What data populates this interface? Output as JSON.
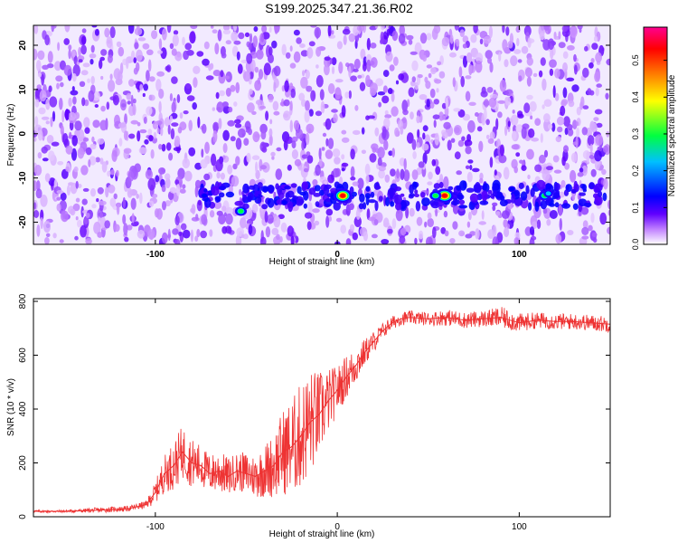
{
  "title": "S199.2025.347.21.36.R02",
  "chart_data": [
    {
      "type": "heatmap",
      "xlabel": "Height of straight line (km)",
      "ylabel": "Frequency (Hz)",
      "xlim": [
        -167,
        150
      ],
      "ylim": [
        -25,
        24.5
      ],
      "xticks": [
        -100,
        0,
        100
      ],
      "yticks": [
        -20,
        -10,
        0,
        10,
        20
      ],
      "colorbar": {
        "label": "Normalized spectral amplitude",
        "range": [
          0,
          0.59
        ],
        "ticks": [
          "0.0",
          "0.1",
          "0.2",
          "0.3",
          "0.4",
          "0.5"
        ],
        "colormap": [
          "#ffffff",
          "#c080ff",
          "#6000ff",
          "#0000ff",
          "#00ffff",
          "#00ff00",
          "#ffff00",
          "#ff8000",
          "#ff0000",
          "#ff00a0"
        ]
      },
      "features": [
        {
          "x": 3,
          "y": -14,
          "value": 0.58
        },
        {
          "x": 59,
          "y": -14,
          "value": 0.58
        },
        {
          "x": 54,
          "y": -14,
          "value": 0.35
        },
        {
          "x": 114,
          "y": -14,
          "value": 0.3
        },
        {
          "x": 116,
          "y": -13.5,
          "value": 0.25
        },
        {
          "x": -53,
          "y": -17.5,
          "value": 0.3
        },
        {
          "x": -73,
          "y": -14,
          "value": 0.2
        },
        {
          "x": -29,
          "y": -15.5,
          "value": 0.18
        },
        {
          "x": 96,
          "y": -12.5,
          "value": 0.15
        },
        {
          "x": 130,
          "y": -13,
          "value": 0.12
        }
      ],
      "band": {
        "y": -14,
        "x_range": [
          -75,
          150
        ],
        "description_value": 0.08
      }
    },
    {
      "type": "line",
      "xlabel": "Height of straight line (km)",
      "ylabel": "SNR (10 * v/v)",
      "xlim": [
        -167,
        150
      ],
      "ylim": [
        0,
        810
      ],
      "xticks": [
        -100,
        0,
        100
      ],
      "yticks": [
        0,
        200,
        400,
        600,
        800
      ],
      "color": "#ee3333",
      "series": [
        {
          "x": [
            -167,
            -150,
            -130,
            -115,
            -105,
            -100,
            -95,
            -90,
            -85,
            -80,
            -75,
            -70,
            -65,
            -60,
            -55,
            -50,
            -45,
            -40,
            -35,
            -30,
            -25,
            -20,
            -15,
            -10,
            -5,
            0,
            5,
            10,
            15,
            20,
            25,
            30,
            35,
            40,
            50,
            60,
            70,
            80,
            90,
            100,
            110,
            120,
            130,
            140,
            150
          ],
          "values": [
            20,
            20,
            25,
            30,
            45,
            90,
            160,
            190,
            240,
            200,
            190,
            160,
            170,
            150,
            170,
            160,
            150,
            170,
            190,
            240,
            260,
            300,
            350,
            380,
            430,
            470,
            520,
            560,
            610,
            650,
            690,
            720,
            735,
            740,
            735,
            740,
            730,
            735,
            740,
            720,
            730,
            725,
            725,
            720,
            715
          ],
          "spread": [
            5,
            5,
            10,
            10,
            15,
            40,
            70,
            90,
            100,
            90,
            80,
            70,
            80,
            70,
            70,
            80,
            80,
            100,
            120,
            160,
            180,
            200,
            200,
            160,
            120,
            90,
            80,
            70,
            50,
            40,
            30,
            25,
            25,
            25,
            25,
            30,
            30,
            30,
            40,
            35,
            30,
            30,
            30,
            30,
            30
          ]
        }
      ]
    }
  ]
}
